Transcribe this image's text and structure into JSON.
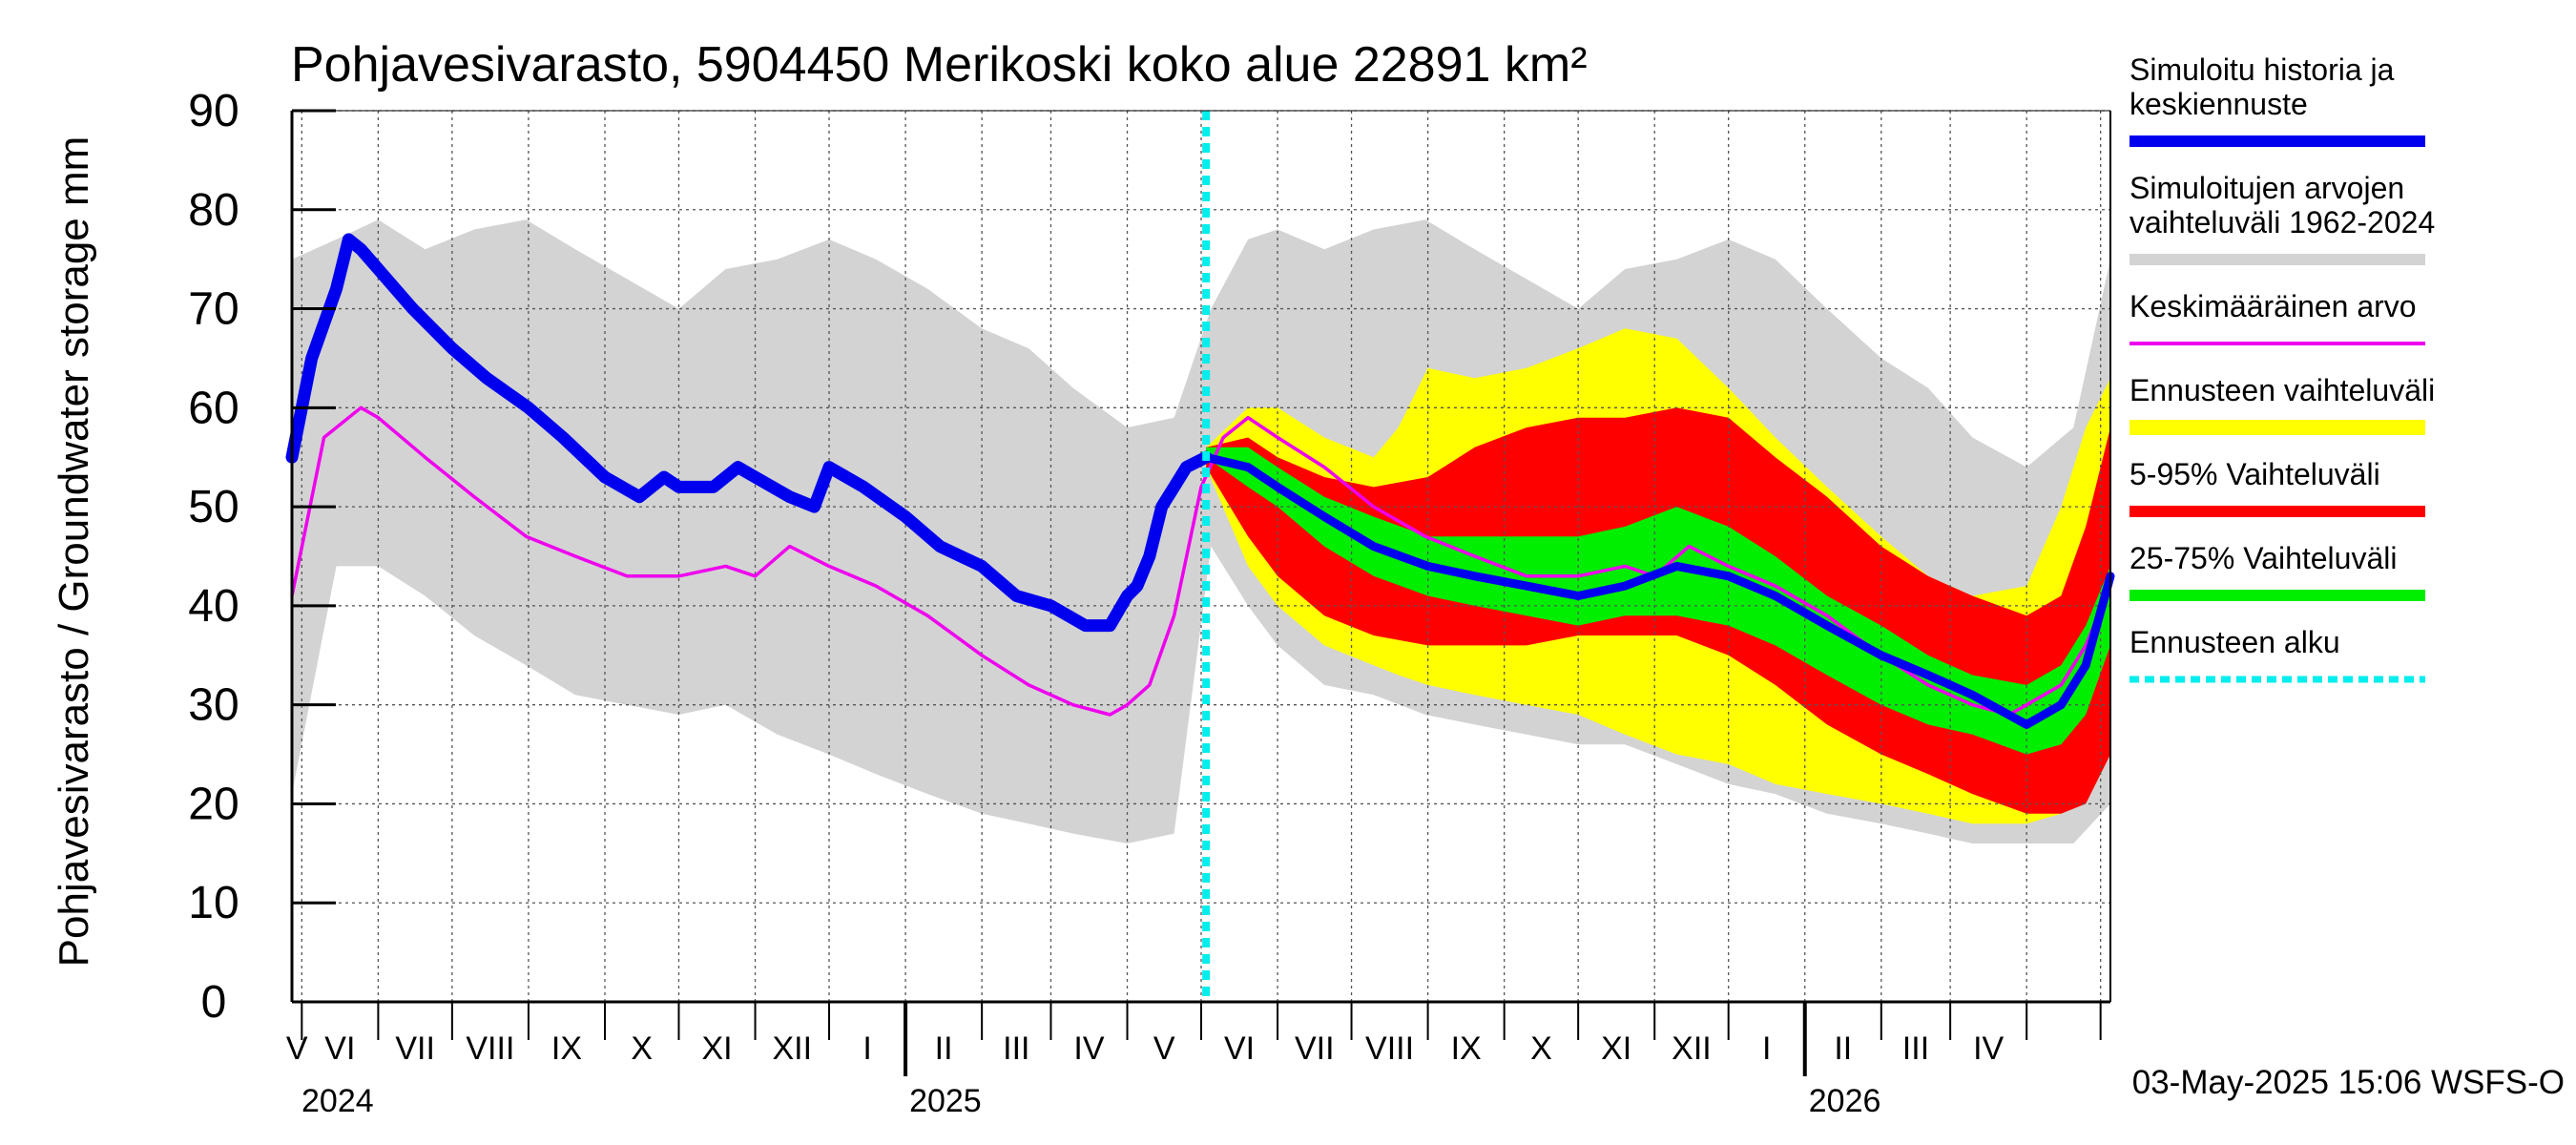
{
  "chart_data": {
    "type": "area",
    "title": "Pohjavesivarasto, 5904450 Merikoski koko alue 22891 km²",
    "ylabel": "Pohjavesivarasto / Groundwater storage   mm",
    "ylim": [
      0,
      90
    ],
    "yticks": [
      "0",
      "10",
      "20",
      "30",
      "40",
      "50",
      "60",
      "70",
      "80",
      "90"
    ],
    "xlim": [
      "2024-04-27",
      "2026-05-05"
    ],
    "month_labels": [
      "V",
      "VI",
      "VII",
      "VIII",
      "IX",
      "X",
      "XI",
      "XII",
      "I",
      "II",
      "III",
      "IV",
      "V",
      "VI",
      "VII",
      "VIII",
      "IX",
      "X",
      "XI",
      "XII",
      "I",
      "II",
      "III",
      "IV"
    ],
    "year_labels": [
      "2024",
      "2025",
      "2026"
    ],
    "grid": true,
    "legend_position": "right",
    "timestamp": "03-May-2025 15:06 WSFS-O",
    "forecast_start": "2025-05-03",
    "colors": {
      "history": "#0000ee",
      "range": "#d3d3d3",
      "mean": "#ee00ee",
      "ens_range": "#ffff00",
      "p5_95": "#ff0000",
      "p25_75": "#00ee00",
      "forecast_start": "#00eeee"
    },
    "legend": [
      {
        "key": "history",
        "label": "Simuloitu historia ja keskiennuste",
        "lines": [
          "Simuloitu historia ja",
          "keskiennuste"
        ]
      },
      {
        "key": "range",
        "label": "Simuloitujen arvojen vaihteluväli 1962-2024",
        "lines": [
          "Simuloitujen arvojen",
          "vaihteluväli 1962-2024"
        ]
      },
      {
        "key": "mean",
        "label": "Keskimääräinen arvo",
        "lines": [
          "Keskimääräinen arvo"
        ]
      },
      {
        "key": "ens_range",
        "label": "Ennusteen vaihteluväli",
        "lines": [
          "Ennusteen vaihteluväli"
        ]
      },
      {
        "key": "p5_95",
        "label": "5-95% Vaihteluväli",
        "lines": [
          "5-95% Vaihteluväli"
        ]
      },
      {
        "key": "p25_75",
        "label": "25-75% Vaihteluväli",
        "lines": [
          "25-75% Vaihteluväli"
        ]
      },
      {
        "key": "forecast_start",
        "label": "Ennusteen alku",
        "lines": [
          "Ennusteen alku"
        ]
      }
    ],
    "range_band": {
      "x": [
        "2024-04-27",
        "2024-05-15",
        "2024-06-01",
        "2024-06-20",
        "2024-07-10",
        "2024-07-31",
        "2024-08-20",
        "2024-09-10",
        "2024-10-01",
        "2024-10-20",
        "2024-11-10",
        "2024-12-01",
        "2024-12-20",
        "2025-01-10",
        "2025-02-01",
        "2025-02-20",
        "2025-03-10",
        "2025-04-01",
        "2025-04-20",
        "2025-05-05",
        "2025-05-20",
        "2025-06-01",
        "2025-06-20",
        "2025-07-10",
        "2025-07-31",
        "2025-08-20",
        "2025-09-10",
        "2025-10-01",
        "2025-10-20",
        "2025-11-10",
        "2025-12-01",
        "2025-12-20",
        "2026-01-10",
        "2026-02-01",
        "2026-02-20",
        "2026-03-10",
        "2026-04-01",
        "2026-04-20",
        "2026-05-05"
      ],
      "upper": [
        75,
        77,
        79,
        76,
        78,
        79,
        76,
        73,
        70,
        74,
        75,
        77,
        75,
        72,
        68,
        66,
        62,
        58,
        59,
        70,
        77,
        78,
        76,
        78,
        79,
        76,
        73,
        70,
        74,
        75,
        77,
        75,
        70,
        65,
        62,
        57,
        54,
        58,
        75
      ],
      "lower": [
        21,
        44,
        44,
        41,
        37,
        34,
        31,
        30,
        29,
        30,
        27,
        25,
        23,
        21,
        19,
        18,
        17,
        16,
        17,
        46,
        40,
        36,
        32,
        31,
        29,
        28,
        27,
        26,
        26,
        24,
        22,
        21,
        19,
        18,
        17,
        16,
        16,
        16,
        20
      ]
    },
    "history": {
      "x": [
        "2024-04-27",
        "2024-05-05",
        "2024-05-15",
        "2024-05-20",
        "2024-05-25",
        "2024-06-01",
        "2024-06-15",
        "2024-07-01",
        "2024-07-15",
        "2024-08-01",
        "2024-08-15",
        "2024-09-01",
        "2024-09-15",
        "2024-09-25",
        "2024-10-01",
        "2024-10-15",
        "2024-10-25",
        "2024-11-01",
        "2024-11-15",
        "2024-11-25",
        "2024-12-01",
        "2024-12-15",
        "2025-01-01",
        "2025-01-15",
        "2025-02-01",
        "2025-02-15",
        "2025-03-01",
        "2025-03-15",
        "2025-03-25",
        "2025-04-01",
        "2025-04-05",
        "2025-04-10",
        "2025-04-15",
        "2025-04-20",
        "2025-04-25",
        "2025-05-03"
      ],
      "y": [
        55,
        65,
        72,
        77,
        76,
        74,
        70,
        66,
        63,
        60,
        57,
        53,
        51,
        53,
        52,
        52,
        54,
        53,
        51,
        50,
        54,
        52,
        49,
        46,
        44,
        41,
        40,
        38,
        38,
        41,
        42,
        45,
        50,
        52,
        54,
        55
      ]
    },
    "forecast_median": {
      "x": [
        "2025-05-03",
        "2025-05-20",
        "2025-06-01",
        "2025-06-20",
        "2025-07-10",
        "2025-08-01",
        "2025-08-20",
        "2025-09-10",
        "2025-10-01",
        "2025-10-20",
        "2025-11-10",
        "2025-12-01",
        "2025-12-20",
        "2026-01-10",
        "2026-02-01",
        "2026-02-20",
        "2026-03-10",
        "2026-04-01",
        "2026-04-15",
        "2026-04-25",
        "2026-05-05"
      ],
      "y": [
        55,
        54,
        52,
        49,
        46,
        44,
        43,
        42,
        41,
        42,
        44,
        43,
        41,
        38,
        35,
        33,
        31,
        28,
        30,
        34,
        43
      ]
    },
    "mean": {
      "x": [
        "2024-04-27",
        "2024-05-10",
        "2024-05-25",
        "2024-06-01",
        "2024-06-20",
        "2024-07-10",
        "2024-07-31",
        "2024-08-20",
        "2024-09-10",
        "2024-10-01",
        "2024-10-20",
        "2024-11-01",
        "2024-11-15",
        "2024-12-01",
        "2024-12-20",
        "2025-01-10",
        "2025-02-01",
        "2025-02-20",
        "2025-03-10",
        "2025-03-25",
        "2025-04-01",
        "2025-04-10",
        "2025-04-20",
        "2025-05-01",
        "2025-05-10",
        "2025-05-20",
        "2025-06-01",
        "2025-06-20",
        "2025-07-10",
        "2025-07-31",
        "2025-08-20",
        "2025-09-10",
        "2025-10-01",
        "2025-10-20",
        "2025-11-01",
        "2025-11-15",
        "2025-12-01",
        "2025-12-20",
        "2026-01-10",
        "2026-02-01",
        "2026-02-20",
        "2026-03-10",
        "2026-03-25",
        "2026-04-01",
        "2026-04-15",
        "2026-04-25",
        "2026-05-05"
      ],
      "y": [
        41,
        57,
        60,
        59,
        55,
        51,
        47,
        45,
        43,
        43,
        44,
        43,
        46,
        44,
        42,
        39,
        35,
        32,
        30,
        29,
        30,
        32,
        39,
        52,
        57,
        59,
        57,
        54,
        50,
        47,
        45,
        43,
        43,
        44,
        43,
        46,
        44,
        42,
        39,
        35,
        32,
        30,
        29,
        30,
        32,
        36,
        42
      ]
    },
    "ens_range": {
      "x": [
        "2025-05-03",
        "2025-05-20",
        "2025-06-01",
        "2025-06-20",
        "2025-07-10",
        "2025-07-20",
        "2025-08-01",
        "2025-08-20",
        "2025-09-10",
        "2025-10-01",
        "2025-10-20",
        "2025-11-10",
        "2025-12-01",
        "2025-12-20",
        "2026-01-10",
        "2026-02-01",
        "2026-02-20",
        "2026-03-10",
        "2026-04-01",
        "2026-04-15",
        "2026-04-25",
        "2026-05-05"
      ],
      "upper": [
        56,
        60,
        60,
        57,
        55,
        58,
        64,
        63,
        64,
        66,
        68,
        67,
        62,
        57,
        52,
        47,
        43,
        41,
        42,
        50,
        58,
        63
      ],
      "lower": [
        54,
        44,
        40,
        36,
        34,
        33,
        32,
        31,
        30,
        29,
        27,
        25,
        24,
        22,
        21,
        20,
        19,
        18,
        18,
        19,
        24,
        30
      ]
    },
    "p5_95": {
      "x": [
        "2025-05-03",
        "2025-05-20",
        "2025-06-01",
        "2025-06-20",
        "2025-07-10",
        "2025-08-01",
        "2025-08-20",
        "2025-09-10",
        "2025-10-01",
        "2025-10-20",
        "2025-11-10",
        "2025-12-01",
        "2025-12-20",
        "2026-01-10",
        "2026-02-01",
        "2026-02-20",
        "2026-03-10",
        "2026-04-01",
        "2026-04-15",
        "2026-04-25",
        "2026-05-05"
      ],
      "upper": [
        56,
        57,
        55,
        53,
        52,
        53,
        56,
        58,
        59,
        59,
        60,
        59,
        55,
        51,
        46,
        43,
        41,
        39,
        41,
        48,
        58
      ],
      "lower": [
        54,
        47,
        43,
        39,
        37,
        36,
        36,
        36,
        37,
        37,
        37,
        35,
        32,
        28,
        25,
        23,
        21,
        19,
        19,
        20,
        25
      ]
    },
    "p25_75": {
      "x": [
        "2025-05-03",
        "2025-05-20",
        "2025-06-01",
        "2025-06-20",
        "2025-07-10",
        "2025-08-01",
        "2025-08-20",
        "2025-09-10",
        "2025-10-01",
        "2025-10-20",
        "2025-11-10",
        "2025-12-01",
        "2025-12-20",
        "2026-01-10",
        "2026-02-01",
        "2026-02-20",
        "2026-03-10",
        "2026-04-01",
        "2026-04-15",
        "2026-04-25",
        "2026-05-05"
      ],
      "upper": [
        56,
        56,
        54,
        51,
        49,
        47,
        47,
        47,
        47,
        48,
        50,
        48,
        45,
        41,
        38,
        35,
        33,
        32,
        34,
        38,
        44
      ],
      "lower": [
        55,
        52,
        50,
        46,
        43,
        41,
        40,
        39,
        38,
        39,
        39,
        38,
        36,
        33,
        30,
        28,
        27,
        25,
        26,
        29,
        36
      ]
    }
  }
}
